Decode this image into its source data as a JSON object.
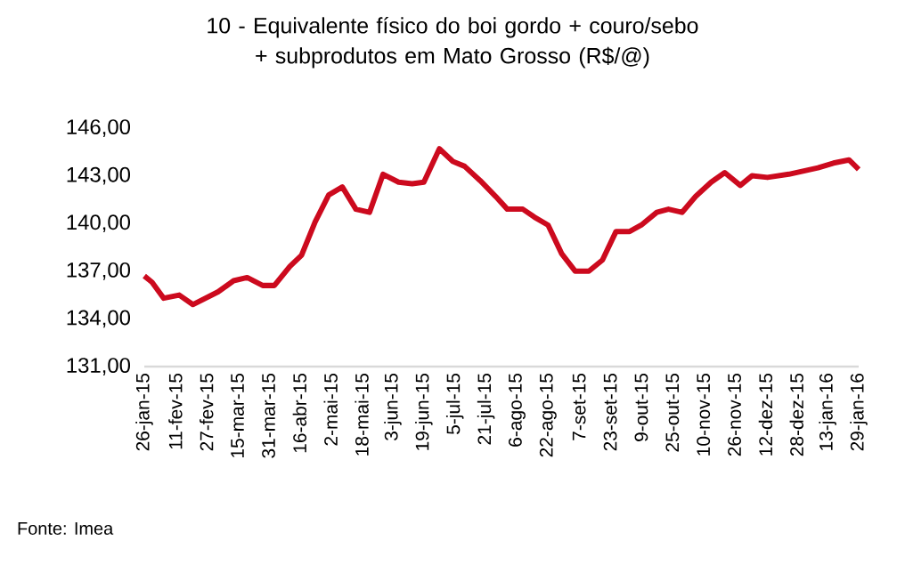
{
  "chart_data": {
    "type": "line",
    "title": "10 - Equivalente físico do boi gordo + couro/sebo + subprodutos em Mato Grosso (R$/@)",
    "x": [
      "2015-01-26",
      "2015-01-30",
      "2015-02-05",
      "2015-02-13",
      "2015-02-20",
      "2015-03-05",
      "2015-03-13",
      "2015-03-20",
      "2015-03-28",
      "2015-04-03",
      "2015-04-11",
      "2015-04-17",
      "2015-04-24",
      "2015-05-01",
      "2015-05-08",
      "2015-05-15",
      "2015-05-22",
      "2015-05-29",
      "2015-06-06",
      "2015-06-13",
      "2015-06-19",
      "2015-06-27",
      "2015-07-04",
      "2015-07-10",
      "2015-07-18",
      "2015-07-26",
      "2015-08-01",
      "2015-08-09",
      "2015-08-15",
      "2015-08-22",
      "2015-08-29",
      "2015-09-05",
      "2015-09-12",
      "2015-09-19",
      "2015-09-26",
      "2015-10-03",
      "2015-10-09",
      "2015-10-17",
      "2015-10-23",
      "2015-10-30",
      "2015-11-06",
      "2015-11-14",
      "2015-11-21",
      "2015-11-29",
      "2015-12-05",
      "2015-12-13",
      "2015-12-24",
      "2016-01-08",
      "2016-01-16",
      "2016-01-24",
      "2016-01-29"
    ],
    "series": [
      {
        "color": "#cc0a1e",
        "values": [
          136.7,
          136.3,
          135.3,
          135.5,
          134.9,
          135.7,
          136.4,
          136.6,
          136.1,
          136.1,
          137.3,
          138.0,
          140.1,
          141.8,
          142.3,
          140.9,
          140.7,
          143.1,
          142.6,
          142.5,
          142.6,
          144.7,
          143.9,
          143.6,
          142.7,
          141.7,
          140.9,
          140.9,
          140.4,
          139.9,
          138.1,
          137.0,
          137.0,
          137.7,
          139.5,
          139.5,
          139.9,
          140.7,
          140.9,
          140.7,
          141.7,
          142.6,
          143.2,
          142.4,
          143.0,
          142.9,
          143.1,
          143.5,
          143.8,
          144.0,
          143.4
        ]
      }
    ],
    "xlim": [
      "2015-01-26",
      "2016-01-29"
    ],
    "xticks": [
      {
        "value": "2015-01-26",
        "label": "26-jan-15"
      },
      {
        "value": "2015-02-11",
        "label": "11-fev-15"
      },
      {
        "value": "2015-02-27",
        "label": "27-fev-15"
      },
      {
        "value": "2015-03-15",
        "label": "15-mar-15"
      },
      {
        "value": "2015-03-31",
        "label": "31-mar-15"
      },
      {
        "value": "2015-04-16",
        "label": "16-abr-15"
      },
      {
        "value": "2015-05-02",
        "label": "2-mai-15"
      },
      {
        "value": "2015-05-18",
        "label": "18-mai-15"
      },
      {
        "value": "2015-06-03",
        "label": "3-jun-15"
      },
      {
        "value": "2015-06-19",
        "label": "19-jun-15"
      },
      {
        "value": "2015-07-05",
        "label": "5-jul-15"
      },
      {
        "value": "2015-07-21",
        "label": "21-jul-15"
      },
      {
        "value": "2015-08-06",
        "label": "6-ago-15"
      },
      {
        "value": "2015-08-22",
        "label": "22-ago-15"
      },
      {
        "value": "2015-09-07",
        "label": "7-set-15"
      },
      {
        "value": "2015-09-23",
        "label": "23-set-15"
      },
      {
        "value": "2015-10-09",
        "label": "9-out-15"
      },
      {
        "value": "2015-10-25",
        "label": "25-out-15"
      },
      {
        "value": "2015-11-10",
        "label": "10-nov-15"
      },
      {
        "value": "2015-11-26",
        "label": "26-nov-15"
      },
      {
        "value": "2015-12-12",
        "label": "12-dez-15"
      },
      {
        "value": "2015-12-28",
        "label": "28-dez-15"
      },
      {
        "value": "2016-01-13",
        "label": "13-jan-16"
      },
      {
        "value": "2016-01-29",
        "label": "29-jan-16"
      }
    ],
    "ylim": [
      131,
      146
    ],
    "yticks": [
      {
        "value": 131,
        "label": "131,00"
      },
      {
        "value": 134,
        "label": "134,00"
      },
      {
        "value": 137,
        "label": "137,00"
      },
      {
        "value": 140,
        "label": "140,00"
      },
      {
        "value": 143,
        "label": "143,00"
      },
      {
        "value": 146,
        "label": "146,00"
      }
    ],
    "grid": false,
    "marker": "none",
    "line_style": "solid",
    "annotations": [
      "Fonte: Imea"
    ]
  }
}
